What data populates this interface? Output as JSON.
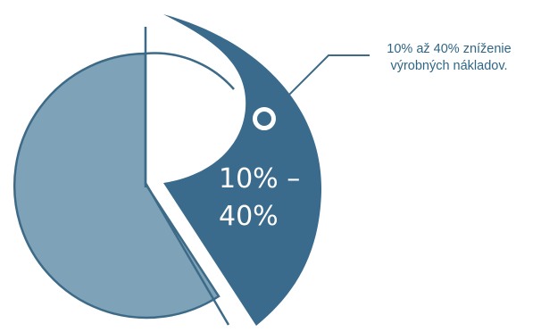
{
  "diagram": {
    "label_big_line1": "10% –",
    "label_big_line2": "40%",
    "callout_line1": "10% až 40% zníženie",
    "callout_line2": "výrobných nákladov."
  },
  "colors": {
    "light_segment": "#7ea2b8",
    "dark_segment": "#3a6b8c",
    "outline": "#3d6a87",
    "callout_text": "#2f6685",
    "label_text": "#ffffff",
    "white": "#ffffff"
  }
}
